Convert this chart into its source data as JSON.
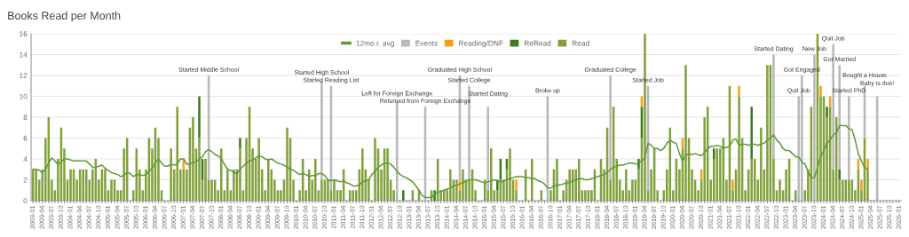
{
  "chart_data": {
    "type": "bar",
    "title": "Books Read per Month",
    "stacked": true,
    "ylim": [
      0,
      16
    ],
    "yticks": [
      0,
      2,
      4,
      6,
      8,
      10,
      12,
      14,
      16
    ],
    "grid": "y",
    "legend": "top",
    "categories": [
      "2003-01",
      null,
      null,
      "2003-04",
      null,
      null,
      "2003-07",
      null,
      null,
      "2003-10",
      null,
      null,
      "2004-01",
      null,
      null,
      "2004-04",
      null,
      null,
      "2004-07",
      null,
      null,
      "2004-10",
      null,
      null,
      "2005-01",
      null,
      null,
      "2005-04",
      null,
      null,
      "2005-07",
      null,
      null,
      "2005-10",
      null,
      null,
      "2006-01",
      null,
      null,
      "2006-04",
      null,
      null,
      "2006-07",
      null,
      null,
      "2006-10",
      null,
      null,
      "2007-01",
      null,
      null,
      "2007-04",
      null,
      null,
      "2007-07",
      null,
      null,
      "2007-10",
      null,
      null,
      "2008-01",
      null,
      null,
      "2008-04",
      null,
      null,
      "2008-07",
      null,
      null,
      "2008-10",
      null,
      null,
      "2009-01",
      null,
      null,
      "2009-04",
      null,
      null,
      "2009-07",
      null,
      null,
      "2009-10",
      null,
      null,
      "2010-01",
      null,
      null,
      "2010-04",
      null,
      null,
      "2010-07",
      null,
      null,
      "2010-10",
      null,
      null,
      "2011-01",
      null,
      null,
      "2011-04",
      null,
      null,
      "2011-07",
      null,
      null,
      "2011-10",
      null,
      null,
      "2012-01",
      null,
      null,
      "2012-04",
      null,
      null,
      "2012-07",
      null,
      null,
      "2012-10",
      null,
      null,
      "2013-01",
      null,
      null,
      "2013-04",
      null,
      null,
      "2013-07",
      null,
      null,
      "2013-10",
      null,
      null,
      "2014-01",
      null,
      null,
      "2014-04",
      null,
      null,
      "2014-07",
      null,
      null,
      "2014-10",
      null,
      null,
      "2015-01",
      null,
      null,
      "2015-04",
      null,
      null,
      "2015-07",
      null,
      null,
      "2015-10",
      null,
      null,
      "2016-01",
      null,
      null,
      "2016-04",
      null,
      null,
      "2016-07",
      null,
      null,
      "2016-10",
      null,
      null,
      "2017-01",
      null,
      null,
      "2017-04",
      null,
      null,
      "2017-07",
      null,
      null,
      "2017-10",
      null,
      null,
      "2018-01",
      null,
      null,
      "2018-04",
      null,
      null,
      "2018-07",
      null,
      null,
      "2018-10",
      null,
      null,
      "2019-01",
      null,
      null,
      "2019-04",
      null,
      null,
      "2019-07",
      null,
      null,
      "2019-10",
      null,
      null,
      "2020-01",
      null,
      null,
      "2020-04",
      null,
      null,
      "2020-07",
      null,
      null,
      "2020-10",
      null,
      null,
      "2021-01",
      null,
      null,
      "2021-04",
      null,
      null,
      "2021-07",
      null,
      null,
      "2021-10",
      null,
      null,
      "2022-01",
      null,
      null,
      "2022-04",
      null,
      null,
      "2022-07",
      null,
      null,
      "2022-10",
      null,
      null,
      "2023-01",
      null,
      null,
      "2023-04",
      null,
      null,
      "2023-07",
      null,
      null,
      "2023-10",
      null,
      null,
      "2024-01",
      null,
      null,
      "2024-04",
      null,
      null,
      "2024-07",
      null,
      null,
      "2024-10",
      null,
      null,
      "2025-01",
      null,
      null,
      "2025-04",
      null,
      null,
      "2025-07",
      null,
      null,
      "2025-10",
      null,
      null,
      "2026-01"
    ],
    "series": [
      {
        "name": "12mo r. avg",
        "type": "line",
        "color": "#5e9a3a",
        "values": [
          3,
          3,
          2.9,
          2.7,
          3.0,
          3.6,
          4.1,
          3.8,
          3.5,
          3.7,
          4.0,
          4.0,
          3.9,
          3.8,
          3.8,
          3.8,
          3.8,
          3.8,
          3.5,
          3.2,
          3.2,
          3.3,
          3.4,
          3.1,
          2.9,
          2.7,
          2.6,
          2.5,
          2.3,
          2.4,
          2.7,
          2.6,
          2.3,
          2.5,
          2.5,
          2.4,
          2.5,
          2.8,
          3.1,
          3.6,
          4.0,
          3.6,
          3.3,
          3.3,
          3.5,
          3.4,
          3.5,
          4.0,
          4.0,
          3.5,
          3.5,
          3.7,
          3.7,
          4.0,
          4.2,
          4.7,
          4.9,
          4.7,
          4.4,
          4.3,
          4.0,
          3.5,
          3.0,
          2.9,
          2.7,
          2.6,
          3.0,
          3.3,
          3.6,
          3.8,
          3.9,
          4.1,
          4.3,
          4.2,
          4.0,
          3.9,
          4.0,
          3.8,
          3.6,
          3.5,
          3.4,
          3.2,
          3.0,
          2.9,
          2.7,
          2.5,
          2.6,
          2.5,
          2.3,
          2.4,
          2.4,
          2.6,
          2.6,
          2.4,
          2.0,
          1.9,
          2.0,
          1.9,
          1.8,
          1.9,
          1.7,
          1.6,
          1.4,
          1.4,
          1.5,
          1.8,
          1.9,
          2.0,
          2.5,
          2.8,
          3.2,
          3.4,
          3.6,
          3.6,
          3.5,
          3.2,
          2.8,
          2.5,
          2.3,
          2.2,
          2.0,
          1.8,
          1.4,
          1.0,
          0.5,
          0.3,
          0.3,
          0.3,
          0.6,
          0.8,
          0.9,
          1.0,
          1.1,
          1.2,
          1.4,
          1.5,
          1.6,
          1.7,
          1.9,
          2.0,
          2.0,
          2.0,
          1.9,
          1.8,
          1.7,
          1.8,
          1.9,
          2.0,
          1.9,
          1.8,
          1.9,
          2.0,
          2.1,
          2.2,
          2.3,
          2.3,
          2.3,
          2.2,
          2.2,
          2.1,
          2.1,
          1.9,
          1.8,
          1.6,
          1.2,
          1.2,
          1.4,
          1.5,
          1.5,
          1.6,
          1.7,
          1.7,
          1.9,
          2.0,
          2.1,
          2.1,
          2.0,
          2.0,
          2.1,
          2.2,
          2.3,
          2.4,
          2.5,
          2.7,
          3.0,
          3.2,
          3.3,
          3.4,
          3.4,
          3.5,
          3.6,
          3.6,
          3.5,
          3.6,
          3.8,
          4.1,
          5.5,
          5.3,
          5.0,
          5.0,
          4.8,
          5.0,
          5.5,
          5.8,
          5.6,
          5.5,
          4.5,
          3.8,
          4.3,
          4.5,
          4.4,
          4.5,
          4.4,
          4.3,
          4.6,
          5.0,
          5.2,
          5.2,
          5.3,
          5.2,
          5.0,
          5.1,
          5.2,
          5.8,
          5.9,
          5.3,
          5.4,
          5.4,
          5.3,
          5.4,
          5.4,
          5.3,
          5.4,
          5.5,
          5.8,
          6.0,
          6.3,
          5.8,
          5.5,
          5.0,
          4.8,
          4.8,
          4.5,
          4.2,
          4.2,
          3.7,
          3.5,
          2.8,
          2.2,
          2.2,
          3.2,
          4.2,
          4.8,
          5.5,
          5.8,
          6.3,
          6.5,
          7.2,
          7.2,
          7.2,
          6.9,
          6.8,
          5.8,
          4.5,
          3.8,
          3.2,
          3.0,
          null,
          null,
          null,
          null,
          null,
          null,
          null,
          null,
          null,
          null
        ]
      },
      {
        "name": "Read",
        "color": "#82a13c",
        "values": [
          3,
          3,
          2,
          3,
          6,
          8,
          2,
          1,
          4,
          7,
          5,
          2,
          3,
          3,
          2,
          3,
          3,
          3,
          2,
          3,
          4,
          2,
          3,
          3,
          1,
          2,
          2,
          1,
          1,
          5,
          6,
          0,
          1,
          5,
          3,
          1,
          3,
          6,
          5,
          7,
          6,
          1,
          0,
          0,
          5,
          3,
          9,
          3,
          3,
          3,
          7,
          8,
          5,
          6,
          2,
          4,
          2,
          2,
          2,
          1,
          5,
          1,
          3,
          1,
          3,
          3,
          5,
          1,
          6,
          9,
          5,
          4,
          6,
          3,
          1,
          4,
          3,
          2,
          1,
          1,
          2,
          7,
          6,
          2,
          0,
          1,
          4,
          1,
          3,
          2,
          4,
          1,
          2,
          2,
          2,
          1,
          2,
          1,
          1,
          3,
          0,
          1,
          1,
          1,
          3,
          5,
          3,
          2,
          0,
          6,
          5,
          3,
          5,
          5,
          2,
          1,
          0,
          0,
          0,
          0,
          0,
          1,
          0,
          1,
          0,
          0,
          0,
          1,
          0,
          4,
          1,
          1,
          1,
          3,
          2,
          2,
          1,
          3,
          2,
          2,
          3,
          1,
          0,
          0,
          2,
          1,
          5,
          1,
          1,
          2,
          2,
          3,
          5,
          2,
          1,
          0,
          0,
          3,
          0,
          4,
          0,
          0,
          1,
          0,
          0,
          1,
          3,
          4,
          0,
          1,
          2,
          3,
          3,
          3,
          4,
          1,
          1,
          1,
          1,
          3,
          0,
          4,
          3,
          7,
          2,
          9,
          4,
          2,
          1,
          3,
          1,
          2,
          2,
          3,
          6,
          16,
          1,
          3,
          5,
          1,
          0,
          1,
          3,
          7,
          1,
          4,
          3,
          5,
          13,
          6,
          3,
          2,
          1,
          2,
          8,
          9,
          2,
          4,
          5,
          5,
          6,
          2,
          11,
          1,
          3,
          10,
          6,
          1,
          3,
          4,
          4,
          2,
          7,
          3,
          13,
          13,
          4,
          1,
          2,
          1,
          3,
          4,
          0,
          1,
          0,
          0,
          1,
          3,
          9,
          0,
          16,
          10,
          10,
          8,
          9,
          3,
          8,
          2,
          2,
          2,
          2,
          2,
          1,
          3,
          1,
          6,
          3,
          0,
          0,
          0,
          0,
          0,
          0,
          0,
          0,
          0,
          0
        ]
      },
      {
        "name": "ReRead",
        "color": "#3d7a1f",
        "values": [
          0,
          0,
          0,
          0,
          0,
          0,
          0,
          0,
          0,
          0,
          0,
          0,
          0,
          0,
          0,
          0,
          0,
          0,
          0,
          0,
          0,
          0,
          0,
          0,
          0,
          0,
          0,
          0,
          0,
          0,
          0,
          0,
          0,
          0,
          0,
          0,
          0,
          0,
          0,
          0,
          0,
          0,
          0,
          0,
          0,
          0,
          0,
          0,
          0,
          0,
          0,
          0,
          0,
          4,
          2,
          0,
          0,
          0,
          0,
          0,
          0,
          0,
          0,
          0,
          0,
          0,
          1,
          0,
          0,
          0,
          0,
          0,
          0,
          0,
          0,
          0,
          0,
          0,
          0,
          0,
          0,
          0,
          0,
          0,
          0,
          0,
          0,
          0,
          0,
          0,
          0,
          0,
          0,
          0,
          0,
          0,
          0,
          0,
          0,
          0,
          0,
          0,
          0,
          0,
          0,
          0,
          0,
          0,
          0,
          0,
          0,
          0,
          0,
          0,
          0,
          0,
          0,
          0,
          1,
          0,
          0,
          0,
          0,
          0,
          0,
          0,
          0,
          0,
          1,
          0,
          0,
          0,
          0,
          0,
          0,
          0,
          0,
          0,
          0,
          0,
          0,
          0,
          0,
          0,
          0,
          0,
          0,
          0,
          1,
          2,
          0,
          1,
          0,
          0,
          0,
          0,
          0,
          0,
          0,
          0,
          0,
          0,
          0,
          0,
          0,
          0,
          0,
          0,
          0,
          0,
          0,
          0,
          0,
          0,
          0,
          0,
          0,
          0,
          0,
          0,
          0,
          0,
          0,
          0,
          0,
          0,
          0,
          0,
          0,
          0,
          0,
          0,
          0,
          1,
          3,
          0,
          0,
          0,
          0,
          0,
          0,
          0,
          0,
          0,
          0,
          0,
          0,
          0,
          0,
          0,
          0,
          0,
          0,
          0,
          0,
          0,
          0,
          1,
          0,
          0,
          0,
          0,
          0,
          0,
          0,
          0,
          0,
          0,
          0,
          5,
          0,
          0,
          0,
          0,
          0,
          0,
          0,
          0,
          0,
          0,
          0,
          0,
          0,
          0,
          0,
          0,
          0,
          0,
          0,
          0,
          0,
          0,
          0,
          1,
          0,
          0,
          0,
          1,
          0,
          0,
          0,
          0,
          0,
          0,
          0,
          0,
          0,
          0,
          0,
          0,
          0,
          0,
          0,
          0,
          0,
          0,
          0
        ]
      },
      {
        "name": "Reading/DNF",
        "color": "#f5a01a",
        "values": [
          0,
          0,
          0,
          0,
          0,
          0,
          0,
          0,
          0,
          0,
          0,
          0,
          0,
          0,
          0,
          0,
          0,
          0,
          0,
          0,
          0,
          0,
          0,
          0,
          0,
          0,
          0,
          0,
          0,
          0,
          0,
          0,
          0,
          0,
          0,
          0,
          0,
          0,
          0,
          0,
          0,
          0,
          0,
          0,
          0,
          0,
          0,
          0,
          1,
          0,
          0,
          0,
          0,
          0,
          0,
          0,
          0,
          0,
          0,
          0,
          0,
          0,
          0,
          0,
          0,
          0,
          0,
          0,
          0,
          0,
          0,
          0,
          0,
          0,
          0,
          0,
          0,
          0,
          0,
          0,
          0,
          0,
          0,
          0,
          0,
          0,
          0,
          0,
          0,
          0,
          0,
          0,
          0,
          0,
          0,
          0,
          0,
          0,
          0,
          0,
          0,
          0,
          0,
          0,
          0,
          0,
          0,
          0,
          0,
          0,
          0,
          0,
          0,
          0,
          0,
          0,
          0,
          0,
          0,
          0,
          0,
          0,
          0,
          0,
          0,
          0,
          0,
          0,
          0,
          0,
          0,
          0,
          0,
          0,
          0,
          0,
          1,
          0,
          0,
          0,
          0,
          0,
          0,
          0,
          0,
          0,
          0,
          0,
          0,
          0,
          0,
          0,
          0,
          0,
          1,
          0,
          0,
          0,
          0,
          0,
          0,
          0,
          0,
          0,
          0,
          0,
          0,
          0,
          0,
          0,
          0,
          0,
          0,
          0,
          0,
          0,
          0,
          0,
          0,
          0,
          0,
          0,
          0,
          0,
          0,
          0,
          0,
          0,
          0,
          0,
          0,
          0,
          0,
          0,
          1,
          0,
          0,
          0,
          0,
          0,
          0,
          0,
          0,
          0,
          0,
          0,
          0,
          1,
          0,
          0,
          0,
          0,
          0,
          1,
          0,
          0,
          0,
          0,
          0,
          0,
          0,
          0,
          0,
          1,
          0,
          1,
          0,
          0,
          0,
          0,
          0,
          0,
          0,
          0,
          0,
          0,
          0,
          0,
          0,
          0,
          0,
          0,
          0,
          0,
          0,
          0,
          0,
          0,
          0,
          0,
          0,
          1,
          0,
          0,
          1,
          0,
          0,
          0,
          0,
          0,
          0,
          0,
          0,
          1,
          1,
          0,
          1,
          0,
          0,
          0,
          0,
          0,
          0,
          0,
          0,
          0,
          0
        ]
      },
      {
        "name": "Events",
        "color": "#b8b8b8",
        "values": [
          null,
          null,
          null,
          null,
          null,
          null,
          null,
          null,
          null,
          null,
          null,
          null,
          null,
          null,
          null,
          null,
          null,
          null,
          null,
          null,
          null,
          null,
          null,
          null,
          null,
          null,
          null,
          null,
          null,
          null,
          null,
          null,
          null,
          null,
          null,
          null,
          null,
          null,
          null,
          null,
          null,
          null,
          null,
          null,
          null,
          null,
          null,
          null,
          null,
          null,
          null,
          null,
          null,
          null,
          null,
          null,
          10,
          null,
          null,
          null,
          null,
          null,
          null,
          null,
          null,
          null,
          null,
          null,
          null,
          null,
          null,
          null,
          null,
          null,
          null,
          null,
          null,
          null,
          null,
          null,
          null,
          null,
          null,
          null,
          null,
          null,
          null,
          null,
          null,
          null,
          null,
          null,
          9.5,
          null,
          null,
          10,
          null,
          null,
          null,
          null,
          null,
          null,
          null,
          null,
          null,
          null,
          null,
          null,
          null,
          null,
          null,
          null,
          null,
          null,
          null,
          null,
          9.5,
          null,
          null,
          null,
          null,
          null,
          null,
          null,
          null,
          9,
          null,
          null,
          null,
          null,
          null,
          null,
          null,
          null,
          null,
          null,
          10,
          null,
          null,
          9,
          null,
          null,
          null,
          null,
          null,
          8,
          null,
          null,
          null,
          null,
          null,
          null,
          null,
          null,
          null,
          null,
          null,
          null,
          null,
          null,
          null,
          null,
          null,
          null,
          10,
          null,
          null,
          null,
          null,
          null,
          null,
          null,
          null,
          null,
          null,
          null,
          null,
          null,
          null,
          null,
          null,
          null,
          null,
          null,
          10,
          null,
          null,
          null,
          null,
          null,
          null,
          null,
          null,
          null,
          null,
          null,
          10,
          null,
          null,
          null,
          null,
          null,
          null,
          null,
          null,
          null,
          null,
          null,
          null,
          null,
          null,
          null,
          null,
          null,
          null,
          null,
          null,
          null,
          null,
          null,
          null,
          null,
          null,
          null,
          null,
          null,
          null,
          null,
          null,
          null,
          null,
          null,
          null,
          null,
          null,
          null,
          10,
          null,
          null,
          null,
          null,
          null,
          null,
          null,
          10,
          12,
          null,
          null,
          null,
          14,
          null,
          null,
          null,
          null,
          null,
          12,
          null,
          10,
          null,
          null,
          8,
          null,
          null,
          null,
          null,
          5,
          null,
          null,
          null,
          10,
          null,
          null,
          null,
          null,
          null,
          null,
          null
        ],
        "value_labels": [
          null,
          null,
          null,
          null,
          null,
          null,
          null,
          null,
          null,
          null,
          null,
          null,
          null,
          null,
          null,
          null,
          null,
          null,
          null,
          null,
          null,
          null,
          null,
          null,
          null,
          null,
          null,
          null,
          null,
          null,
          null,
          null,
          null,
          null,
          null,
          null,
          null,
          null,
          null,
          null,
          null,
          null,
          null,
          null,
          null,
          null,
          null,
          null,
          null,
          null,
          null,
          null,
          null,
          null,
          null,
          null,
          "Started Middle School",
          null,
          null,
          null,
          null,
          null,
          null,
          null,
          null,
          null,
          null,
          null,
          null,
          null,
          null,
          null,
          null,
          null,
          null,
          null,
          null,
          null,
          null,
          null,
          null,
          null,
          null,
          null,
          null,
          null,
          null,
          null,
          null,
          null,
          null,
          null,
          "Started High School",
          null,
          null,
          "Started Reading List",
          null,
          null,
          null,
          null,
          null,
          null,
          null,
          null,
          null,
          null,
          null,
          null,
          null,
          null,
          null,
          null,
          null,
          null,
          null,
          null,
          "Left for Foreign Exchange",
          null,
          null,
          null,
          null,
          null,
          null,
          null,
          null,
          "Returned from Foreign Exchange",
          null,
          null,
          null,
          null,
          null,
          null,
          null,
          null,
          null,
          null,
          "Graduated High School",
          null,
          null,
          "Started College",
          null,
          null,
          null,
          null,
          null,
          "Started Dating",
          null,
          null,
          null,
          null,
          null,
          null,
          null,
          null,
          null,
          null,
          null,
          null,
          null,
          null,
          null,
          null,
          null,
          null,
          "Broke up",
          null,
          null,
          null,
          null,
          null,
          null,
          null,
          null,
          null,
          null,
          null,
          null,
          null,
          null,
          null,
          null,
          null,
          null,
          null,
          "Graduated College",
          null,
          null,
          null,
          null,
          null,
          null,
          null,
          null,
          null,
          null,
          null,
          "Started Job",
          null,
          null,
          null,
          null,
          null,
          null,
          null,
          null,
          null,
          null,
          null,
          null,
          null,
          null,
          null,
          null,
          null,
          null,
          null,
          null,
          null,
          null,
          null,
          null,
          null,
          null,
          null,
          null,
          null,
          null,
          null,
          null,
          null,
          null,
          null,
          null,
          null,
          null,
          null,
          "Started Dating",
          null,
          null,
          null,
          null,
          null,
          null,
          null,
          "Quit Job",
          "Got Engaged",
          null,
          null,
          null,
          "New Job",
          null,
          null,
          null,
          null,
          null,
          "Quit Job",
          null,
          "Got Married",
          null,
          null,
          "Started PhD",
          null,
          null,
          null,
          null,
          "Bought a House",
          null,
          null,
          null,
          "Baby is due!",
          null,
          null,
          null,
          null,
          null,
          null,
          null
        ]
      }
    ]
  }
}
